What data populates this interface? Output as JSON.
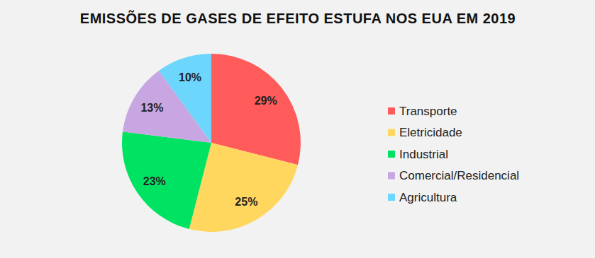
{
  "chart_data": {
    "type": "pie",
    "title": "EMISSÕES DE GASES DE EFEITO ESTUFA NOS EUA EM 2019",
    "categories": [
      "Transporte",
      "Eletricidade",
      "Industrial",
      "Comercial/Residencial",
      "Agricultura"
    ],
    "values": [
      29,
      25,
      23,
      13,
      10
    ],
    "value_labels": [
      "29%",
      "25%",
      "23%",
      "13%",
      "10%"
    ],
    "colors": [
      "#ff5b5b",
      "#ffd75e",
      "#00e262",
      "#c8a6e2",
      "#6cd6fc"
    ],
    "data_labels": true,
    "legend": "right"
  }
}
